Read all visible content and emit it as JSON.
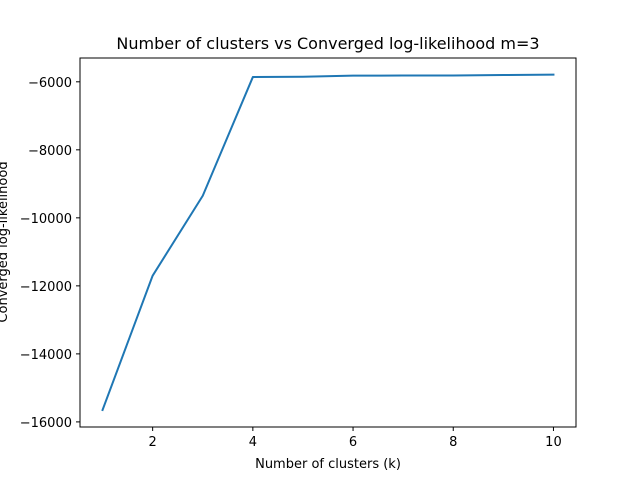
{
  "chart_data": {
    "type": "line",
    "title": "Number of clusters vs Converged log-likelihood m=3",
    "xlabel": "Number of clusters (k)",
    "ylabel": "Converged log-likelihood",
    "xlim": [
      0.55,
      10.45
    ],
    "ylim": [
      -16150,
      -5300
    ],
    "xticks": [
      2,
      4,
      6,
      8,
      10
    ],
    "xtick_labels": [
      "2",
      "4",
      "6",
      "8",
      "10"
    ],
    "yticks": [
      -16000,
      -14000,
      -12000,
      -10000,
      -8000,
      -6000
    ],
    "ytick_labels": [
      "−16000",
      "−14000",
      "−12000",
      "−10000",
      "−8000",
      "−6000"
    ],
    "grid": false,
    "series": [
      {
        "color": "#1f77b4",
        "x": [
          1,
          2,
          3,
          4,
          5,
          6,
          7,
          8,
          9,
          10
        ],
        "y": [
          -15650,
          -11700,
          -9350,
          -5860,
          -5850,
          -5820,
          -5815,
          -5815,
          -5800,
          -5790
        ]
      }
    ]
  }
}
